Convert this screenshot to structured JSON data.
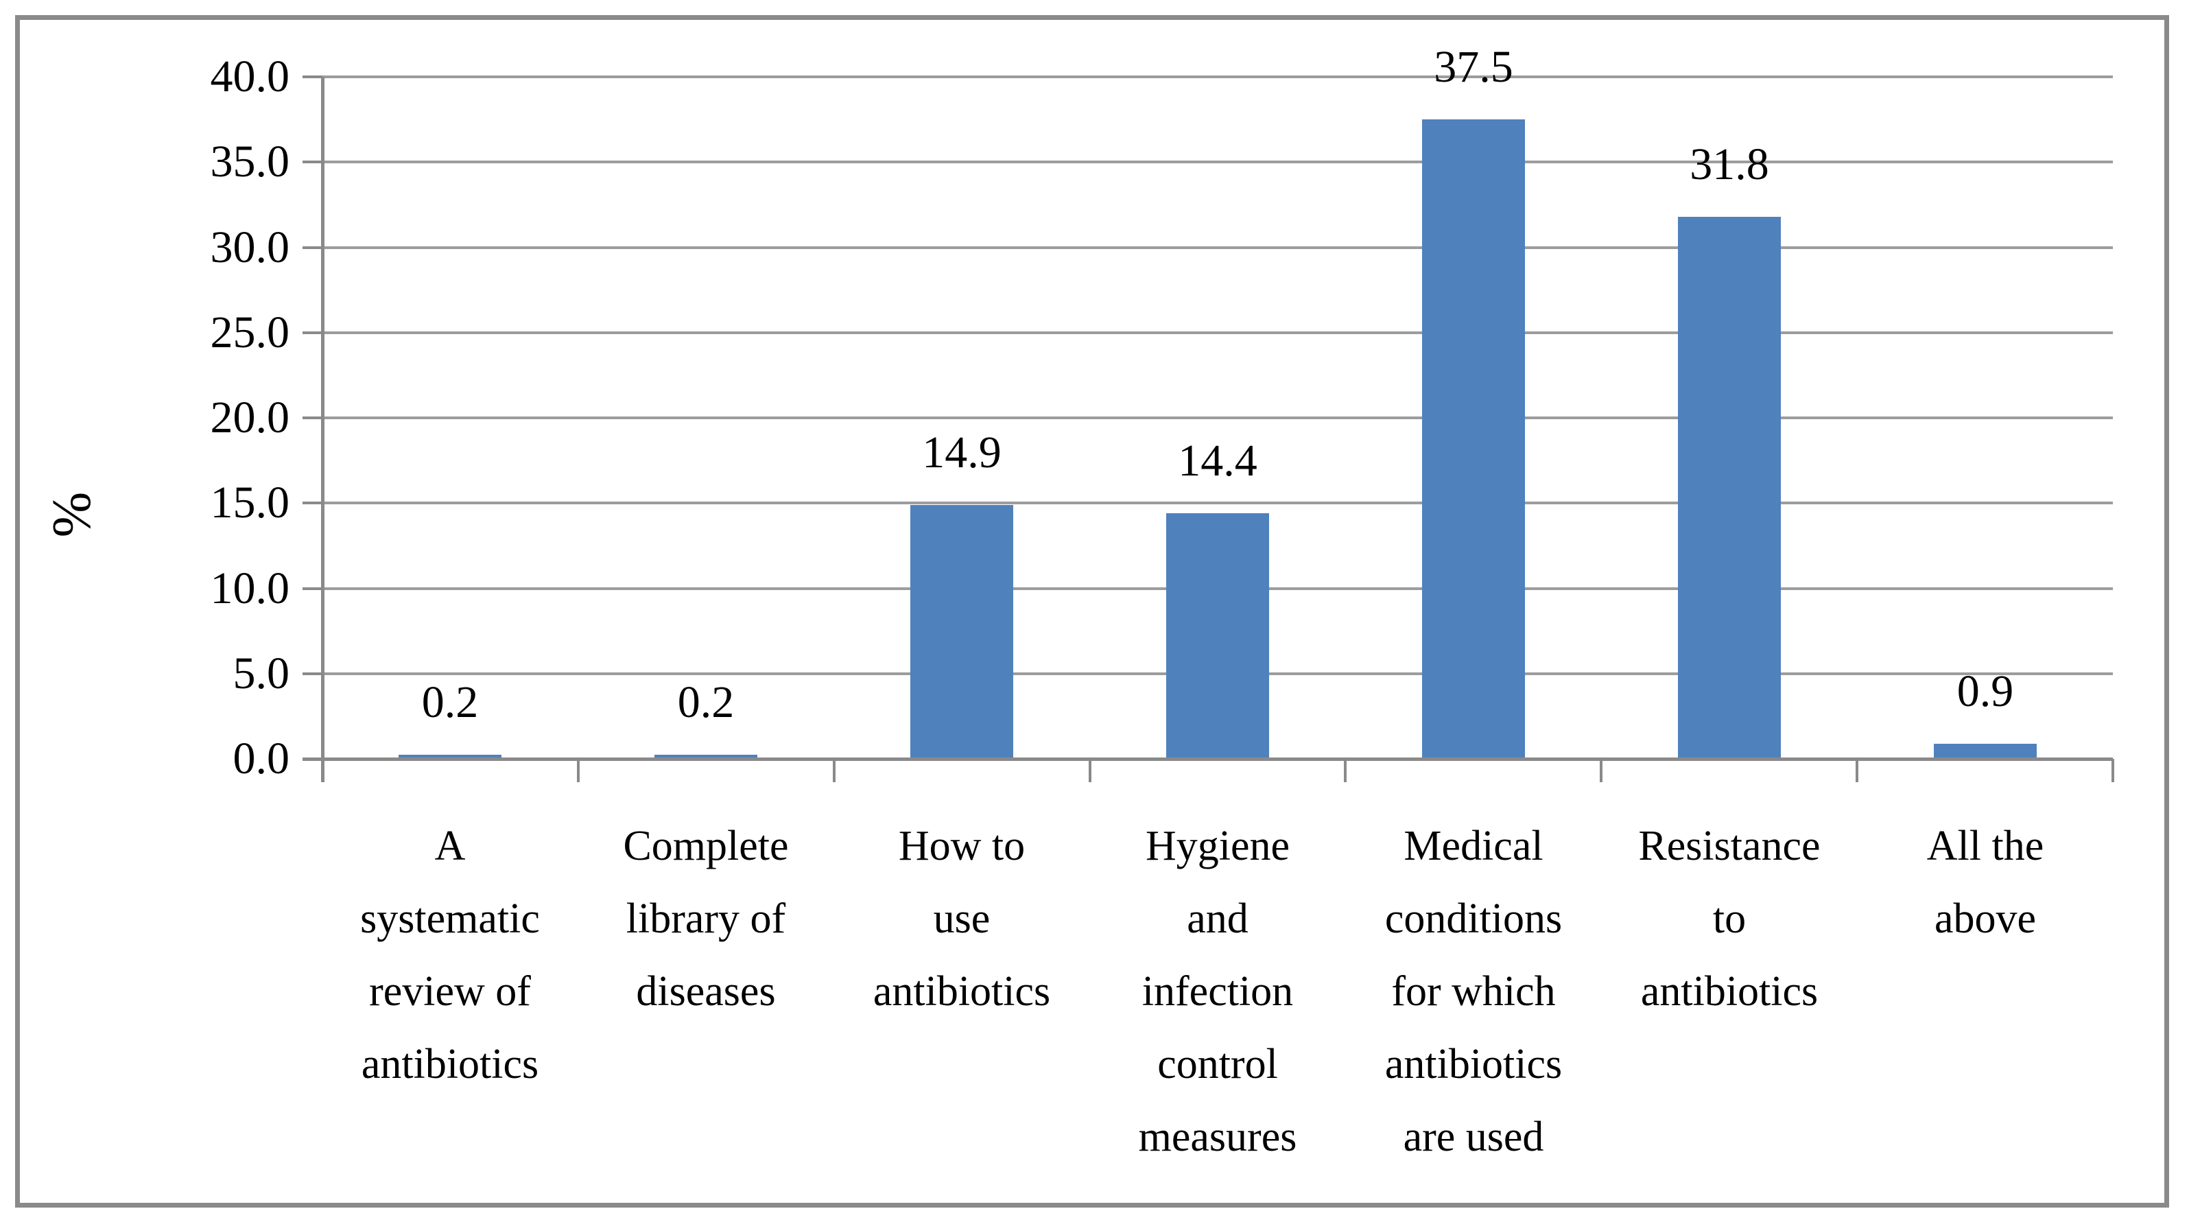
{
  "chart_data": {
    "type": "bar",
    "title": "",
    "xlabel": "",
    "ylabel": "%",
    "categories": [
      "A systematic review of antibiotics",
      "Complete library of diseases",
      "How to use antibiotics",
      "Hygiene and infection control measures",
      "Medical conditions for which antibiotics are used",
      "Resistance to antibiotics",
      "All the above"
    ],
    "category_lines": [
      [
        "A",
        "systematic",
        "review of",
        "antibiotics"
      ],
      [
        "Complete",
        "library of",
        "diseases"
      ],
      [
        "How to",
        "use",
        "antibiotics"
      ],
      [
        "Hygiene",
        "and",
        "infection",
        "control",
        "measures"
      ],
      [
        "Medical",
        "conditions",
        "for which",
        "antibiotics",
        "are used"
      ],
      [
        "Resistance",
        "to",
        "antibiotics"
      ],
      [
        "All the",
        "above"
      ]
    ],
    "values": [
      0.2,
      0.2,
      14.9,
      14.4,
      37.5,
      31.8,
      0.9
    ],
    "data_labels": [
      "0.2",
      "0.2",
      "14.9",
      "14.4",
      "37.5",
      "31.8",
      "0.9"
    ],
    "ylim": [
      0,
      40
    ],
    "ytick_step": 5,
    "ytick_labels": [
      "0.0",
      "5.0",
      "10.0",
      "15.0",
      "20.0",
      "25.0",
      "30.0",
      "35.0",
      "40.0"
    ],
    "grid": true,
    "legend": "none",
    "colors": {
      "bar": "#4f81bd",
      "gridline": "#9c9c9c",
      "axis": "#8a8a8a",
      "frame_border": "#8a8a8a",
      "text": "#000000",
      "background": "#ffffff"
    }
  }
}
